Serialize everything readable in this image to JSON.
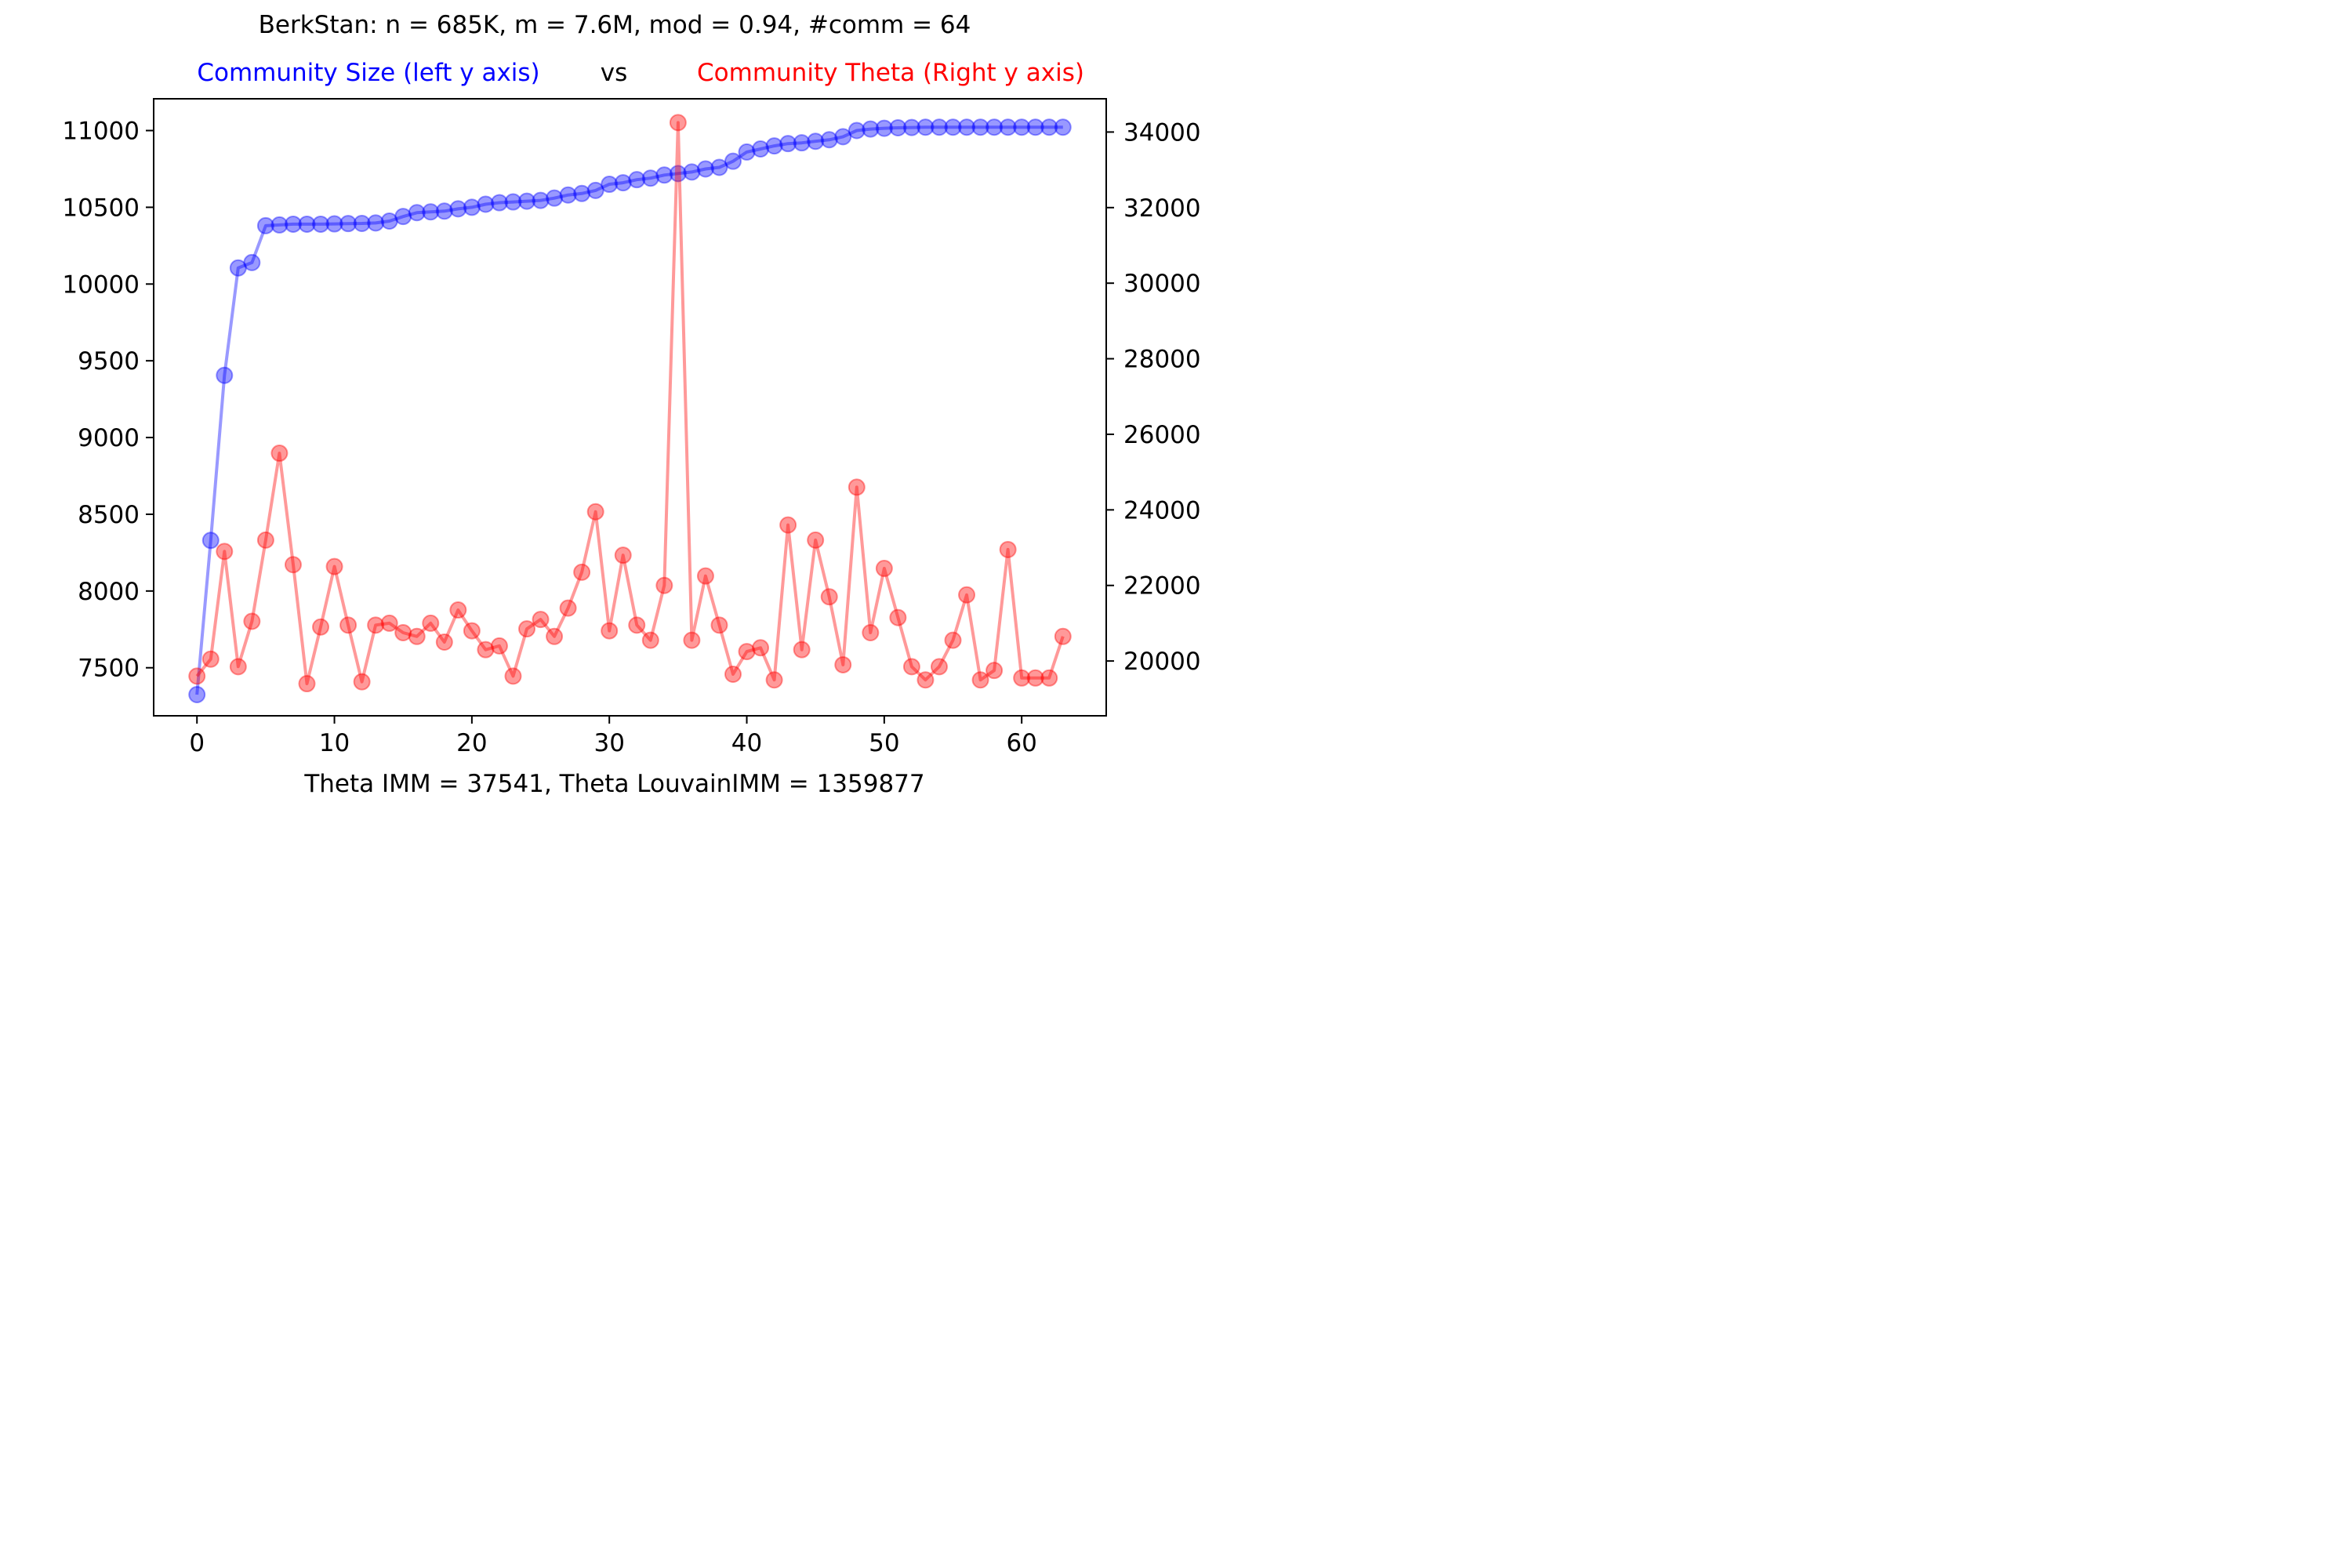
{
  "chart_data": {
    "type": "line",
    "title": "BerkStan: n = 685K, m = 7.6M, mod = 0.94, #comm = 64",
    "subtitle": {
      "left": "Community Size (left y axis)",
      "middle": "vs",
      "right": "Community Theta (Right y axis)"
    },
    "xlabel": "Theta IMM = 37541, Theta LouvainIMM = 1359877",
    "xlim": [
      -3.15,
      66.15
    ],
    "x_ticks": [
      0,
      10,
      20,
      30,
      40,
      50,
      60
    ],
    "ylim_left": [
      7187,
      11207
    ],
    "y_ticks_left": [
      7500,
      8000,
      8500,
      9000,
      9500,
      10000,
      10500,
      11000
    ],
    "ylim_right": [
      18550,
      34880
    ],
    "y_ticks_right": [
      20000,
      22000,
      24000,
      26000,
      28000,
      30000,
      32000,
      34000
    ],
    "grid": false,
    "colors": {
      "left_series": "#0000ff",
      "right_series": "#ff0000"
    },
    "x": [
      0,
      1,
      2,
      3,
      4,
      5,
      6,
      7,
      8,
      9,
      10,
      11,
      12,
      13,
      14,
      15,
      16,
      17,
      18,
      19,
      20,
      21,
      22,
      23,
      24,
      25,
      26,
      27,
      28,
      29,
      30,
      31,
      32,
      33,
      34,
      35,
      36,
      37,
      38,
      39,
      40,
      41,
      42,
      43,
      44,
      45,
      46,
      47,
      48,
      49,
      50,
      51,
      52,
      53,
      54,
      55,
      56,
      57,
      58,
      59,
      60,
      61,
      62,
      63
    ],
    "series": [
      {
        "axis": "left",
        "values": [
          7325,
          8330,
          9405,
          10105,
          10140,
          10380,
          10385,
          10390,
          10390,
          10390,
          10392,
          10394,
          10395,
          10398,
          10410,
          10440,
          10465,
          10470,
          10475,
          10490,
          10500,
          10520,
          10530,
          10535,
          10540,
          10545,
          10560,
          10580,
          10590,
          10610,
          10650,
          10660,
          10680,
          10690,
          10710,
          10720,
          10730,
          10750,
          10760,
          10800,
          10860,
          10880,
          10900,
          10915,
          10920,
          10930,
          10940,
          10960,
          11000,
          11010,
          11015,
          11018,
          11020,
          11022,
          11022,
          11022,
          11022,
          11022,
          11022,
          11022,
          11022,
          11022,
          11022,
          11022
        ]
      },
      {
        "axis": "right",
        "values": [
          19600,
          20050,
          22900,
          19850,
          21050,
          23200,
          25500,
          22550,
          19400,
          20900,
          22500,
          20950,
          19450,
          20950,
          21000,
          20750,
          20650,
          21000,
          20500,
          21350,
          20800,
          20300,
          20400,
          19600,
          20850,
          21100,
          20650,
          21400,
          22350,
          23950,
          20800,
          22800,
          20950,
          20550,
          22000,
          34250,
          20550,
          22250,
          20950,
          19650,
          20250,
          20350,
          19500,
          23600,
          20300,
          23200,
          21700,
          19900,
          24600,
          20750,
          22450,
          21150,
          19850,
          19500,
          19850,
          20550,
          21750,
          19500,
          19750,
          22950,
          19550,
          19550,
          19550,
          20650
        ]
      }
    ]
  }
}
